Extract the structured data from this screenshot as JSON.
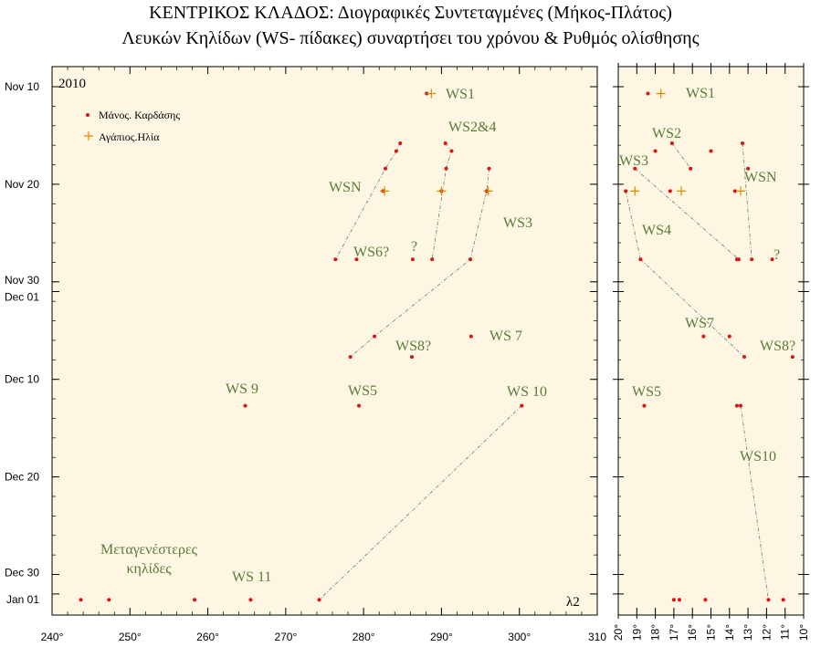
{
  "title_line1": "ΚΕΝΤΡΙΚΟΣ ΚΛΑΔΟΣ: Διογραφικές Συντεταγμένες (Μήκος-Πλάτος)",
  "title_line2": "Λευκών Κηλίδων (WS- πίδακες) συναρτήσει του χρόνου & Ρυθμός ολίσθησης",
  "colors": {
    "panel_bg": "#fdf6e3",
    "marker_red": "#dd1111",
    "marker_orange": "#e08a00",
    "annotation": "#5a7a3a",
    "guide_line": "#777777"
  },
  "chart_data": [
    {
      "type": "scatter",
      "panel": "left",
      "year_label": "2010",
      "x_corner_label": "λ2",
      "xlim": [
        240,
        310
      ],
      "x_ticks": [
        "240°",
        "250°",
        "260°",
        "270°",
        "280°",
        "290°",
        "300°",
        "310"
      ],
      "y_ticks": [
        "Nov 10",
        "Nov 20",
        "Nov 30",
        "Dec 01",
        "Dec 10",
        "Dec 20",
        "Dec 30",
        "Jan 01"
      ],
      "legend": {
        "position": "top-left",
        "items": [
          "Μάνος. Καρδάσης",
          "Αγάπιος.Ηλία"
        ]
      },
      "series": [
        {
          "name": "Μάνος. Καρδάσης",
          "marker": "dot",
          "points": [
            {
              "x": 288.1,
              "y": "2010-11-10.7"
            },
            {
              "x": 284.7,
              "y": "2010-11-15.8"
            },
            {
              "x": 284.2,
              "y": "2010-11-16.6"
            },
            {
              "x": 282.8,
              "y": "2010-11-18.4"
            },
            {
              "x": 282.5,
              "y": "2010-11-20.7"
            },
            {
              "x": 290.5,
              "y": "2010-11-15.8"
            },
            {
              "x": 291.3,
              "y": "2010-11-16.6"
            },
            {
              "x": 290.6,
              "y": "2010-11-18.4"
            },
            {
              "x": 290.0,
              "y": "2010-11-20.7"
            },
            {
              "x": 296.1,
              "y": "2010-11-18.4"
            },
            {
              "x": 295.8,
              "y": "2010-11-20.7"
            },
            {
              "x": 276.4,
              "y": "2010-11-27.7"
            },
            {
              "x": 279.1,
              "y": "2010-11-27.7"
            },
            {
              "x": 286.3,
              "y": "2010-11-27.7"
            },
            {
              "x": 288.8,
              "y": "2010-11-27.7"
            },
            {
              "x": 293.7,
              "y": "2010-11-27.7"
            },
            {
              "x": 281.4,
              "y": "2010-12-05.6"
            },
            {
              "x": 278.3,
              "y": "2010-12-07.7"
            },
            {
              "x": 293.8,
              "y": "2010-12-05.6"
            },
            {
              "x": 286.2,
              "y": "2010-12-07.7"
            },
            {
              "x": 264.8,
              "y": "2010-12-12.7"
            },
            {
              "x": 279.4,
              "y": "2010-12-12.7"
            },
            {
              "x": 300.3,
              "y": "2010-12-12.7"
            },
            {
              "x": 243.7,
              "y": "2011-01-01.6"
            },
            {
              "x": 247.3,
              "y": "2011-01-01.6"
            },
            {
              "x": 258.3,
              "y": "2011-01-01.6"
            },
            {
              "x": 265.5,
              "y": "2011-01-01.6"
            },
            {
              "x": 274.3,
              "y": "2011-01-01.6"
            }
          ]
        },
        {
          "name": "Αγάπιος.Ηλία",
          "marker": "plus",
          "points": [
            {
              "x": 288.7,
              "y": "2010-11-10.7"
            },
            {
              "x": 282.7,
              "y": "2010-11-20.7"
            },
            {
              "x": 290.0,
              "y": "2010-11-20.7"
            },
            {
              "x": 296.0,
              "y": "2010-11-20.7"
            }
          ]
        }
      ],
      "annotations": [
        "WS1",
        "WS2&4",
        "WSN",
        "WS3",
        "WS6?",
        "?",
        "WS 7",
        "WS8?",
        "WS 9",
        "WS5",
        "WS 10",
        "WS 11",
        "Μεταγενέστερες",
        "κηλίδες"
      ]
    },
    {
      "type": "scatter",
      "panel": "right",
      "xlabel": "",
      "xlim": [
        20,
        10
      ],
      "x_ticks": [
        "20°",
        "19°",
        "18°",
        "17°",
        "16°",
        "15°",
        "14°",
        "13°",
        "12°",
        "11°",
        "10°"
      ],
      "series": [
        {
          "name": "Μάνος. Καρδάσης",
          "marker": "dot",
          "points": [
            {
              "x": 18.4,
              "y": "2010-11-10.7"
            },
            {
              "x": 18.0,
              "y": "2010-11-16.6"
            },
            {
              "x": 17.1,
              "y": "2010-11-15.8"
            },
            {
              "x": 16.1,
              "y": "2010-11-18.4"
            },
            {
              "x": 15.0,
              "y": "2010-11-16.6"
            },
            {
              "x": 13.3,
              "y": "2010-11-15.8"
            },
            {
              "x": 13.0,
              "y": "2010-11-18.4"
            },
            {
              "x": 19.1,
              "y": "2010-11-18.4"
            },
            {
              "x": 19.6,
              "y": "2010-11-20.7"
            },
            {
              "x": 17.2,
              "y": "2010-11-20.7"
            },
            {
              "x": 13.7,
              "y": "2010-11-20.7"
            },
            {
              "x": 18.8,
              "y": "2010-11-27.7"
            },
            {
              "x": 13.6,
              "y": "2010-11-27.7"
            },
            {
              "x": 13.5,
              "y": "2010-11-27.7"
            },
            {
              "x": 12.8,
              "y": "2010-11-27.7"
            },
            {
              "x": 11.7,
              "y": "2010-11-27.7"
            },
            {
              "x": 15.4,
              "y": "2010-12-05.6"
            },
            {
              "x": 14.0,
              "y": "2010-12-05.6"
            },
            {
              "x": 13.2,
              "y": "2010-12-07.7"
            },
            {
              "x": 10.6,
              "y": "2010-12-07.7"
            },
            {
              "x": 18.6,
              "y": "2010-12-12.7"
            },
            {
              "x": 13.6,
              "y": "2010-12-12.7"
            },
            {
              "x": 13.4,
              "y": "2010-12-12.7"
            },
            {
              "x": 17.0,
              "y": "2011-01-01.6"
            },
            {
              "x": 16.7,
              "y": "2011-01-01.6"
            },
            {
              "x": 15.3,
              "y": "2011-01-01.6"
            },
            {
              "x": 11.9,
              "y": "2011-01-01.6"
            },
            {
              "x": 11.1,
              "y": "2011-01-01.6"
            }
          ]
        },
        {
          "name": "Αγάπιος.Ηλία",
          "marker": "plus",
          "points": [
            {
              "x": 17.7,
              "y": "2010-11-10.7"
            },
            {
              "x": 19.1,
              "y": "2010-11-20.7"
            },
            {
              "x": 16.6,
              "y": "2010-11-20.7"
            },
            {
              "x": 13.4,
              "y": "2010-11-20.7"
            }
          ]
        }
      ],
      "annotations": [
        "WS1",
        "WS2",
        "WS3",
        "WSN",
        "WS4",
        "?",
        "WS7",
        "WS8?",
        "WS5",
        "WS10"
      ]
    }
  ]
}
